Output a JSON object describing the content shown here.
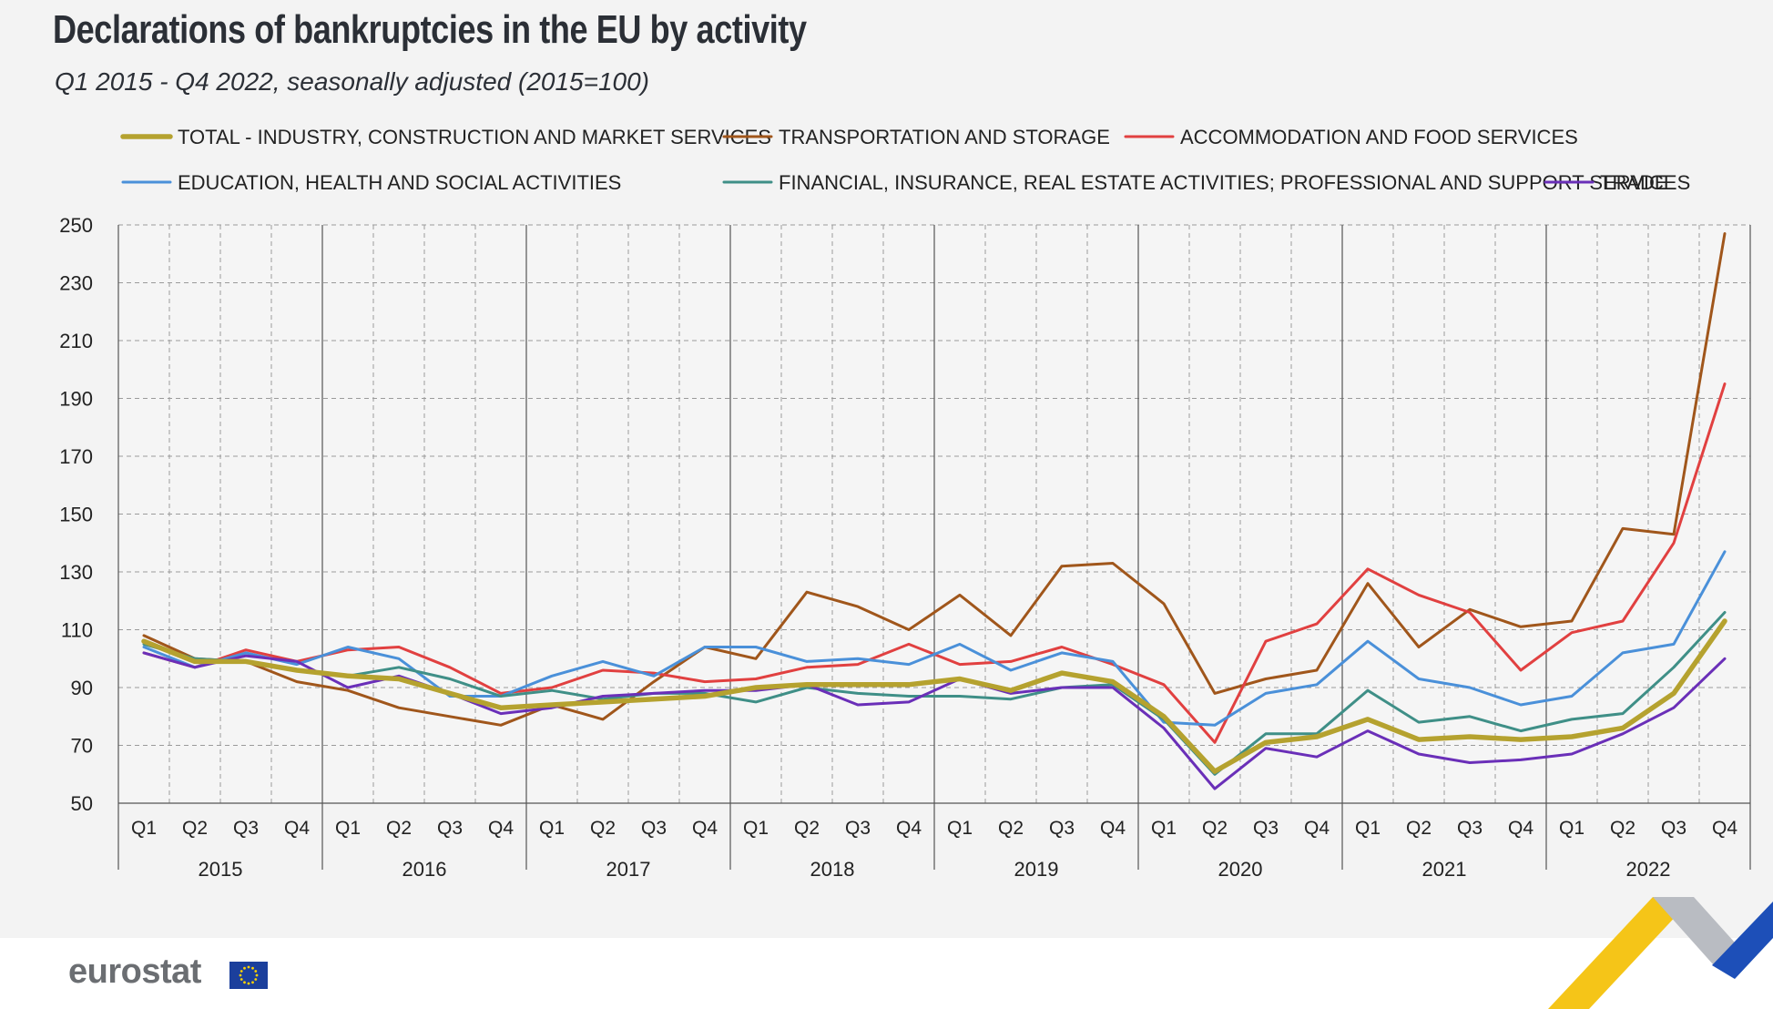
{
  "header": {
    "title": "Declarations of bankruptcies in the EU by activity",
    "subtitle": "Q1 2015 - Q4 2022, seasonally adjusted  (2015=100)"
  },
  "footer": {
    "brand": "eurostat"
  },
  "chart_data": {
    "type": "line",
    "title": "Declarations of bankruptcies in the EU by activity",
    "subtitle": "Q1 2015 - Q4 2022, seasonally adjusted  (2015=100)",
    "xlabel": "",
    "ylabel": "",
    "ylim": [
      50,
      250
    ],
    "yticks": [
      50,
      70,
      90,
      110,
      130,
      150,
      170,
      190,
      210,
      230,
      250
    ],
    "grid": true,
    "legend_position": "top",
    "quarters": [
      "Q1",
      "Q2",
      "Q3",
      "Q4"
    ],
    "years": [
      "2015",
      "2016",
      "2017",
      "2018",
      "2019",
      "2020",
      "2021",
      "2022"
    ],
    "categories": [
      "2015 Q1",
      "2015 Q2",
      "2015 Q3",
      "2015 Q4",
      "2016 Q1",
      "2016 Q2",
      "2016 Q3",
      "2016 Q4",
      "2017 Q1",
      "2017 Q2",
      "2017 Q3",
      "2017 Q4",
      "2018 Q1",
      "2018 Q2",
      "2018 Q3",
      "2018 Q4",
      "2019 Q1",
      "2019 Q2",
      "2019 Q3",
      "2019 Q4",
      "2020 Q1",
      "2020 Q2",
      "2020 Q3",
      "2020 Q4",
      "2021 Q1",
      "2021 Q2",
      "2021 Q3",
      "2021 Q4",
      "2022 Q1",
      "2022 Q2",
      "2022 Q3",
      "2022 Q4"
    ],
    "series": [
      {
        "name": "TRANSPORTATION AND STORAGE",
        "color": "#a0561b",
        "width": 3,
        "values": [
          108,
          100,
          99,
          92,
          89,
          83,
          80,
          77,
          84,
          79,
          92,
          104,
          100,
          123,
          118,
          110,
          122,
          108,
          132,
          133,
          119,
          88,
          93,
          96,
          126,
          104,
          117,
          111,
          113,
          145,
          143,
          247
        ]
      },
      {
        "name": "ACCOMMODATION AND FOOD SERVICES",
        "color": "#e14040",
        "width": 3,
        "values": [
          102,
          97,
          103,
          99,
          103,
          104,
          97,
          88,
          90,
          96,
          95,
          92,
          93,
          97,
          98,
          105,
          98,
          99,
          104,
          98,
          91,
          71,
          106,
          112,
          131,
          122,
          116,
          96,
          109,
          113,
          140,
          195
        ]
      },
      {
        "name": "EDUCATION,  HEALTH AND SOCIAL ACTIVITIES",
        "color": "#4a90d9",
        "width": 3,
        "values": [
          104,
          97,
          102,
          98,
          104,
          100,
          87,
          87,
          94,
          99,
          94,
          104,
          104,
          99,
          100,
          98,
          105,
          96,
          102,
          99,
          78,
          77,
          88,
          91,
          106,
          93,
          90,
          84,
          87,
          102,
          105,
          137
        ]
      },
      {
        "name": "FINANCIAL, INSURANCE, REAL ESTATE ACTIVITIES; PROFESSIONAL AND SUPPORT SERVICES",
        "color": "#3f8f87",
        "width": 3,
        "values": [
          105,
          100,
          99,
          96,
          94,
          97,
          93,
          87,
          89,
          86,
          88,
          88,
          85,
          90,
          88,
          87,
          87,
          86,
          90,
          91,
          79,
          60,
          74,
          74,
          89,
          78,
          80,
          75,
          79,
          81,
          97,
          116
        ]
      },
      {
        "name": "TRADE",
        "color": "#6a2fb8",
        "width": 3,
        "values": [
          102,
          97,
          101,
          99,
          90,
          94,
          88,
          81,
          83,
          87,
          88,
          89,
          89,
          91,
          84,
          85,
          93,
          88,
          90,
          90,
          76,
          55,
          69,
          66,
          75,
          67,
          64,
          65,
          67,
          74,
          83,
          100
        ]
      },
      {
        "name": "TOTAL - INDUSTRY, CONSTRUCTION AND MARKET SERVICES",
        "color": "#b5a22f",
        "width": 5.5,
        "values": [
          106,
          99,
          99,
          96,
          94,
          93,
          88,
          83,
          84,
          85,
          86,
          87,
          90,
          91,
          91,
          91,
          93,
          89,
          95,
          92,
          80,
          61,
          71,
          73,
          79,
          72,
          73,
          72,
          73,
          76,
          88,
          113
        ]
      }
    ],
    "legend": [
      {
        "ref": 5
      },
      {
        "ref": 0
      },
      {
        "ref": 1
      },
      {
        "ref": 2
      },
      {
        "ref": 3
      },
      {
        "ref": 4
      }
    ]
  }
}
